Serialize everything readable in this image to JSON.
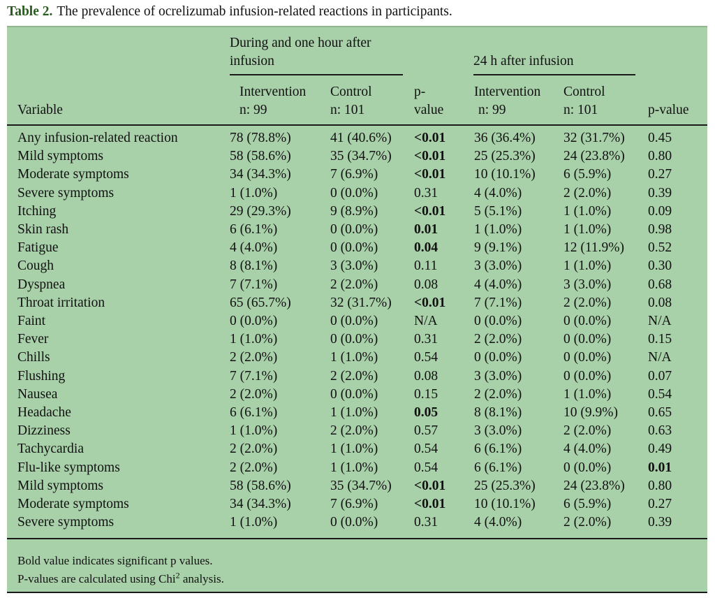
{
  "caption": {
    "label": "Table 2.",
    "text": "The prevalence of ocrelizumab infusion-related reactions in participants."
  },
  "header": {
    "group1": [
      "During and one hour after",
      "infusion"
    ],
    "group2": "24 h after infusion",
    "variable": "Variable",
    "intervention": [
      "Intervention",
      "n: 99"
    ],
    "control": [
      "Control",
      "n: 101"
    ],
    "pvalue1": [
      "p-",
      "value"
    ],
    "pvalue2": "p-value"
  },
  "rows": [
    {
      "variable": "Any infusion-related reaction",
      "int1": "78 (78.8%)",
      "ctl1": "41 (40.6%)",
      "p1": "<0.01",
      "p1_bold": true,
      "int2": "36 (36.4%)",
      "ctl2": "32 (31.7%)",
      "p2": "0.45",
      "p2_bold": false
    },
    {
      "variable": "Mild symptoms",
      "int1": "58 (58.6%)",
      "ctl1": "35 (34.7%)",
      "p1": "<0.01",
      "p1_bold": true,
      "int2": "25 (25.3%)",
      "ctl2": "24 (23.8%)",
      "p2": "0.80",
      "p2_bold": false
    },
    {
      "variable": "Moderate symptoms",
      "int1": "34 (34.3%)",
      "ctl1": "7 (6.9%)",
      "p1": "<0.01",
      "p1_bold": true,
      "int2": "10 (10.1%)",
      "ctl2": "6 (5.9%)",
      "p2": "0.27",
      "p2_bold": false
    },
    {
      "variable": "Severe symptoms",
      "int1": "1 (1.0%)",
      "ctl1": "0 (0.0%)",
      "p1": "0.31",
      "p1_bold": false,
      "int2": "4 (4.0%)",
      "ctl2": "2 (2.0%)",
      "p2": "0.39",
      "p2_bold": false
    },
    {
      "variable": "Itching",
      "int1": "29 (29.3%)",
      "ctl1": "9 (8.9%)",
      "p1": "<0.01",
      "p1_bold": true,
      "int2": "5 (5.1%)",
      "ctl2": "1 (1.0%)",
      "p2": "0.09",
      "p2_bold": false
    },
    {
      "variable": "Skin rash",
      "int1": "6 (6.1%)",
      "ctl1": "0 (0.0%)",
      "p1": "0.01",
      "p1_bold": true,
      "int2": "1 (1.0%)",
      "ctl2": "1 (1.0%)",
      "p2": "0.98",
      "p2_bold": false
    },
    {
      "variable": "Fatigue",
      "int1": "4 (4.0%)",
      "ctl1": "0 (0.0%)",
      "p1": "0.04",
      "p1_bold": true,
      "int2": "9 (9.1%)",
      "ctl2": "12 (11.9%)",
      "p2": "0.52",
      "p2_bold": false
    },
    {
      "variable": "Cough",
      "int1": "8 (8.1%)",
      "ctl1": "3 (3.0%)",
      "p1": "0.11",
      "p1_bold": false,
      "int2": "3 (3.0%)",
      "ctl2": "1 (1.0%)",
      "p2": "0.30",
      "p2_bold": false
    },
    {
      "variable": "Dyspnea",
      "int1": "7 (7.1%)",
      "ctl1": "2 (2.0%)",
      "p1": "0.08",
      "p1_bold": false,
      "int2": "4 (4.0%)",
      "ctl2": "3 (3.0%)",
      "p2": "0.68",
      "p2_bold": false
    },
    {
      "variable": "Throat irritation",
      "int1": "65 (65.7%)",
      "ctl1": "32 (31.7%)",
      "p1": "<0.01",
      "p1_bold": true,
      "int2": "7 (7.1%)",
      "ctl2": "2 (2.0%)",
      "p2": "0.08",
      "p2_bold": false
    },
    {
      "variable": "Faint",
      "int1": "0 (0.0%)",
      "ctl1": "0 (0.0%)",
      "p1": "N/A",
      "p1_bold": false,
      "int2": "0 (0.0%)",
      "ctl2": "0 (0.0%)",
      "p2": "N/A",
      "p2_bold": false
    },
    {
      "variable": "Fever",
      "int1": "1 (1.0%)",
      "ctl1": "0 (0.0%)",
      "p1": "0.31",
      "p1_bold": false,
      "int2": "2 (2.0%)",
      "ctl2": "0 (0.0%)",
      "p2": "0.15",
      "p2_bold": false
    },
    {
      "variable": "Chills",
      "int1": "2 (2.0%)",
      "ctl1": "1 (1.0%)",
      "p1": "0.54",
      "p1_bold": false,
      "int2": "0 (0.0%)",
      "ctl2": "0 (0.0%)",
      "p2": "N/A",
      "p2_bold": false
    },
    {
      "variable": "Flushing",
      "int1": "7 (7.1%)",
      "ctl1": "2 (2.0%)",
      "p1": "0.08",
      "p1_bold": false,
      "int2": "3 (3.0%)",
      "ctl2": "0 (0.0%)",
      "p2": "0.07",
      "p2_bold": false
    },
    {
      "variable": "Nausea",
      "int1": "2 (2.0%)",
      "ctl1": "0 (0.0%)",
      "p1": "0.15",
      "p1_bold": false,
      "int2": "2 (2.0%)",
      "ctl2": "1 (1.0%)",
      "p2": "0.54",
      "p2_bold": false
    },
    {
      "variable": "Headache",
      "int1": "6 (6.1%)",
      "ctl1": "1 (1.0%)",
      "p1": "0.05",
      "p1_bold": true,
      "int2": "8 (8.1%)",
      "ctl2": "10 (9.9%)",
      "p2": "0.65",
      "p2_bold": false
    },
    {
      "variable": "Dizziness",
      "int1": "1 (1.0%)",
      "ctl1": "2 (2.0%)",
      "p1": "0.57",
      "p1_bold": false,
      "int2": "3 (3.0%)",
      "ctl2": "2 (2.0%)",
      "p2": "0.63",
      "p2_bold": false
    },
    {
      "variable": "Tachycardia",
      "int1": "2 (2.0%)",
      "ctl1": "1 (1.0%)",
      "p1": "0.54",
      "p1_bold": false,
      "int2": "6 (6.1%)",
      "ctl2": "4 (4.0%)",
      "p2": "0.49",
      "p2_bold": false
    },
    {
      "variable": "Flu-like symptoms",
      "int1": "2 (2.0%)",
      "ctl1": "1 (1.0%)",
      "p1": "0.54",
      "p1_bold": false,
      "int2": "6 (6.1%)",
      "ctl2": "0 (0.0%)",
      "p2": "0.01",
      "p2_bold": true
    },
    {
      "variable": "Mild symptoms",
      "int1": "58 (58.6%)",
      "ctl1": "35 (34.7%)",
      "p1": "<0.01",
      "p1_bold": true,
      "int2": "25 (25.3%)",
      "ctl2": "24 (23.8%)",
      "p2": "0.80",
      "p2_bold": false
    },
    {
      "variable": "Moderate symptoms",
      "int1": "34 (34.3%)",
      "ctl1": "7 (6.9%)",
      "p1": "<0.01",
      "p1_bold": true,
      "int2": "10 (10.1%)",
      "ctl2": "6 (5.9%)",
      "p2": "0.27",
      "p2_bold": false
    },
    {
      "variable": "Severe symptoms",
      "int1": "1 (1.0%)",
      "ctl1": "0 (0.0%)",
      "p1": "0.31",
      "p1_bold": false,
      "int2": "4 (4.0%)",
      "ctl2": "2 (2.0%)",
      "p2": "0.39",
      "p2_bold": false
    }
  ],
  "footnotes": {
    "line1": "Bold value indicates significant p values.",
    "line2_before": "P-values are calculated using Chi",
    "line2_sup": "2",
    "line2_after": " analysis."
  },
  "colors": {
    "panel": "#a8d0a9",
    "caption_label": "#2a5b20",
    "rule": "#1a1a1a"
  }
}
